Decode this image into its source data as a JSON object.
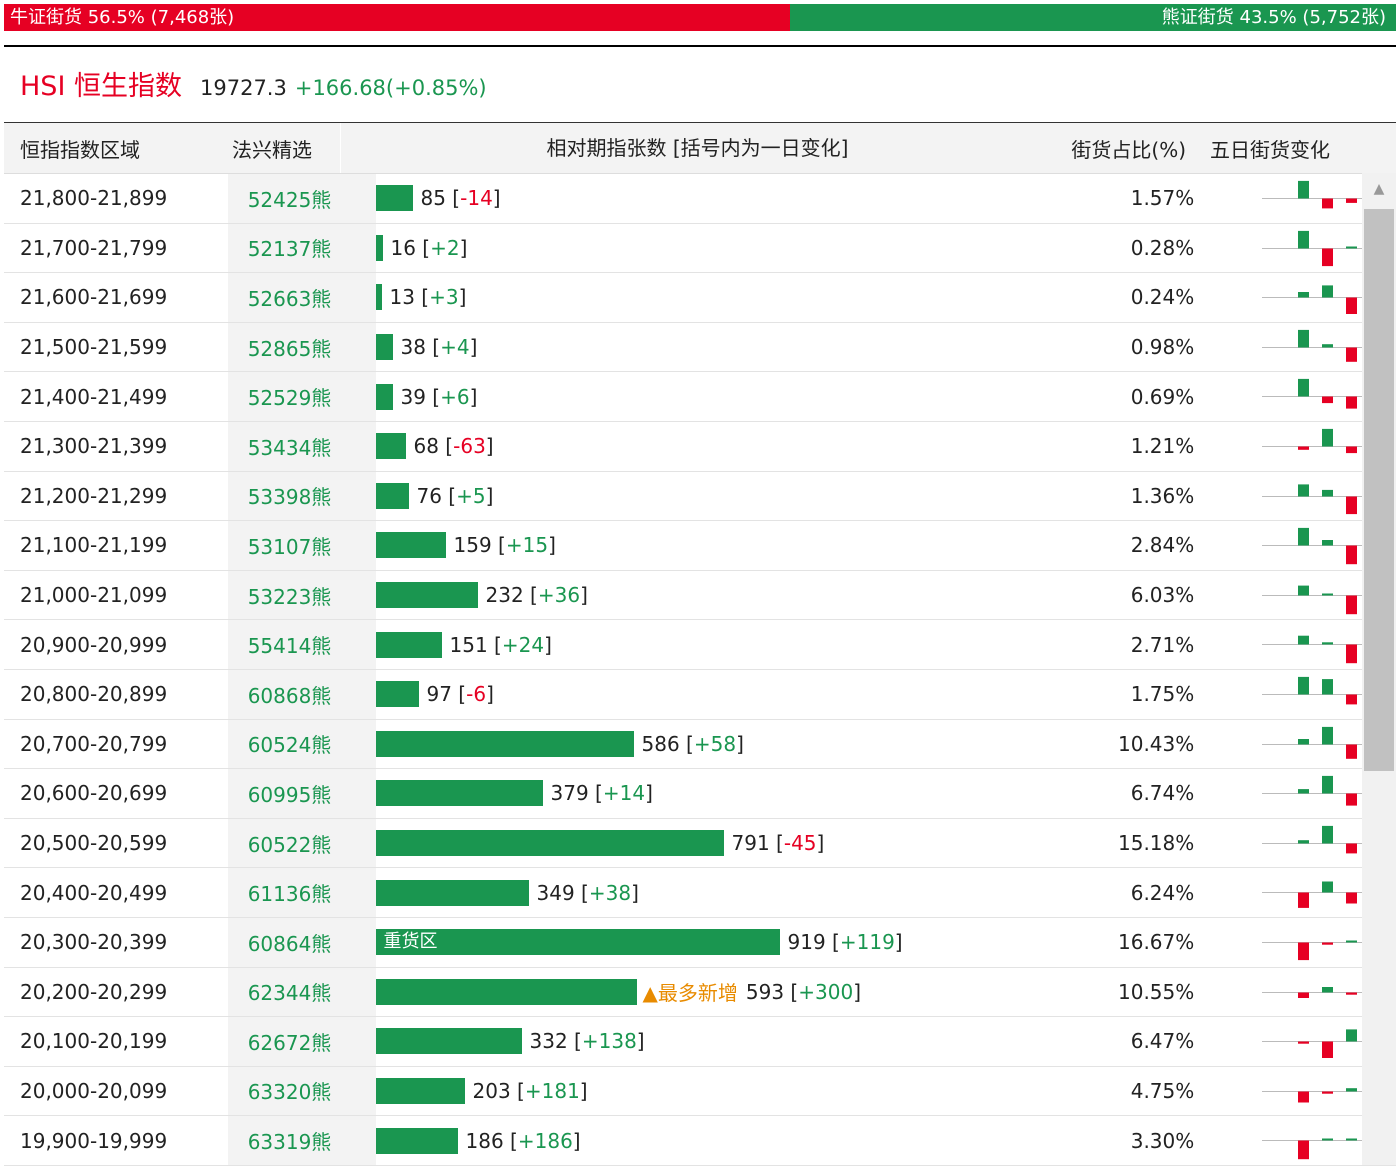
{
  "sentiment": {
    "bull_label": "牛证街货 56.5% (7,468张)",
    "bull_pct": 56.5,
    "bear_label": "熊证街货 43.5% (5,752张)",
    "bear_pct": 43.5
  },
  "index": {
    "name": "HSI 恒生指数",
    "price": "19727.3",
    "change": "+166.68(+0.85%)"
  },
  "columns": [
    "恒指指数区域",
    "法兴精选",
    "相对期指张数 [括号内为一日变化]",
    "街货占比(%)",
    "五日街货变化"
  ],
  "colors": {
    "up": "#1a9650",
    "down": "#e60023",
    "tag": "#e88b00"
  },
  "rows": [
    {
      "range": "21,800-21,899",
      "code": "52425熊",
      "count": 85,
      "count_text": "85",
      "chg": "-14",
      "pct": "1.57%",
      "five": [
        0.8,
        -0.45,
        -0.2,
        -0.35
      ]
    },
    {
      "range": "21,700-21,799",
      "code": "52137熊",
      "count": 16,
      "count_text": "16",
      "chg": "+2",
      "pct": "0.28%",
      "five": [
        0.8,
        -0.8,
        0,
        0.8
      ]
    },
    {
      "range": "21,600-21,699",
      "code": "52663熊",
      "count": 13,
      "count_text": "13",
      "chg": "+3",
      "pct": "0.24%",
      "five": [
        0.25,
        0.55,
        -0.75,
        0.25
      ]
    },
    {
      "range": "21,500-21,599",
      "code": "52865熊",
      "count": 38,
      "count_text": "38",
      "chg": "+4",
      "pct": "0.98%",
      "five": [
        0.8,
        0.15,
        -0.65,
        0.2
      ]
    },
    {
      "range": "21,400-21,499",
      "code": "52529熊",
      "count": 39,
      "count_text": "39",
      "chg": "+6",
      "pct": "0.69%",
      "five": [
        0.8,
        -0.3,
        -0.55,
        0.2
      ]
    },
    {
      "range": "21,300-21,399",
      "code": "53434熊",
      "count": 68,
      "count_text": "68",
      "chg": "-63",
      "pct": "1.21%",
      "five": [
        -0.15,
        0.8,
        -0.3,
        -0.85
      ]
    },
    {
      "range": "21,200-21,299",
      "code": "53398熊",
      "count": 76,
      "count_text": "76",
      "chg": "+5",
      "pct": "1.36%",
      "five": [
        0.55,
        0.3,
        -0.8,
        0.1
      ]
    },
    {
      "range": "21,100-21,199",
      "code": "53107熊",
      "count": 159,
      "count_text": "159",
      "chg": "+15",
      "pct": "2.84%",
      "five": [
        0.8,
        0.25,
        -0.85,
        0.35
      ]
    },
    {
      "range": "21,000-21,099",
      "code": "53223熊",
      "count": 232,
      "count_text": "232",
      "chg": "+36",
      "pct": "6.03%",
      "five": [
        0.45,
        0,
        -0.85,
        0.35
      ]
    },
    {
      "range": "20,900-20,999",
      "code": "55414熊",
      "count": 151,
      "count_text": "151",
      "chg": "+24",
      "pct": "2.71%",
      "five": [
        0.4,
        0.1,
        -0.85,
        0.2
      ]
    },
    {
      "range": "20,800-20,899",
      "code": "60868熊",
      "count": 97,
      "count_text": "97",
      "chg": "-6",
      "pct": "1.75%",
      "five": [
        0.8,
        0.7,
        -0.45,
        -0.15
      ]
    },
    {
      "range": "20,700-20,799",
      "code": "60524熊",
      "count": 586,
      "count_text": "586",
      "chg": "+58",
      "pct": "10.43%",
      "five": [
        0.25,
        0.8,
        -0.65,
        0.15
      ]
    },
    {
      "range": "20,600-20,699",
      "code": "60995熊",
      "count": 379,
      "count_text": "379",
      "chg": "+14",
      "pct": "6.74%",
      "five": [
        0.2,
        0.8,
        -0.55,
        0.05
      ]
    },
    {
      "range": "20,500-20,599",
      "code": "60522熊",
      "count": 791,
      "count_text": "791",
      "chg": "-45",
      "pct": "15.18%",
      "five": [
        0.15,
        0.8,
        -0.45,
        -0.3
      ]
    },
    {
      "range": "20,400-20,499",
      "code": "61136熊",
      "count": 349,
      "count_text": "349",
      "chg": "+38",
      "pct": "6.24%",
      "five": [
        -0.7,
        0.5,
        -0.5,
        0.15
      ]
    },
    {
      "range": "20,300-20,399",
      "code": "60864熊",
      "count": 919,
      "count_text": "919",
      "chg": "+119",
      "pct": "16.67%",
      "five": [
        -0.8,
        -0.1,
        0.05,
        0.35
      ],
      "bar_text": "重货区"
    },
    {
      "range": "20,200-20,299",
      "code": "62344熊",
      "count": 593,
      "count_text": "593",
      "chg": "+300",
      "pct": "10.55%",
      "five": [
        -0.25,
        0.25,
        -0.1,
        0.8
      ],
      "tag": "▲最多新增"
    },
    {
      "range": "20,100-20,199",
      "code": "62672熊",
      "count": 332,
      "count_text": "332",
      "chg": "+138",
      "pct": "6.47%",
      "five": [
        -0.1,
        -0.75,
        0.55,
        0.45
      ]
    },
    {
      "range": "20,000-20,099",
      "code": "63320熊",
      "count": 203,
      "count_text": "203",
      "chg": "+181",
      "pct": "4.75%",
      "five": [
        -0.5,
        -0.1,
        0.15,
        0.8
      ]
    },
    {
      "range": "19,900-19,999",
      "code": "63319熊",
      "count": 186,
      "count_text": "186",
      "chg": "+186",
      "pct": "3.30%",
      "five": [
        -0.85,
        0,
        0,
        0.65
      ]
    }
  ]
}
